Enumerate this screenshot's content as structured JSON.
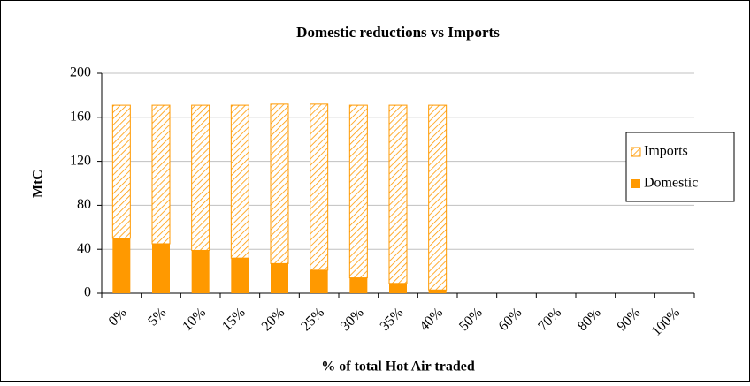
{
  "chart_data": {
    "type": "stacked_bar",
    "title": "Domestic reductions vs Imports",
    "x_label": "% of total Hot Air traded",
    "y_label": "MtC",
    "categories": [
      "0%",
      "5%",
      "10%",
      "15%",
      "20%",
      "25%",
      "30%",
      "35%",
      "40%",
      "50%",
      "60%",
      "70%",
      "80%",
      "90%",
      "100%"
    ],
    "series": [
      {
        "name": "Domestic",
        "color": "#ff9900",
        "hatch": false,
        "values": [
          50,
          45,
          39,
          32,
          27,
          21,
          14,
          9,
          3,
          null,
          null,
          null,
          null,
          null,
          null
        ]
      },
      {
        "name": "Imports",
        "color": "#ff9900",
        "hatch": true,
        "values": [
          121,
          126,
          132,
          139,
          145,
          151,
          157,
          162,
          168,
          null,
          null,
          null,
          null,
          null,
          null
        ]
      }
    ],
    "ylim": [
      0,
      200
    ],
    "yticks": [
      0,
      40,
      80,
      120,
      160,
      200
    ],
    "grid": true,
    "legend": "right"
  }
}
